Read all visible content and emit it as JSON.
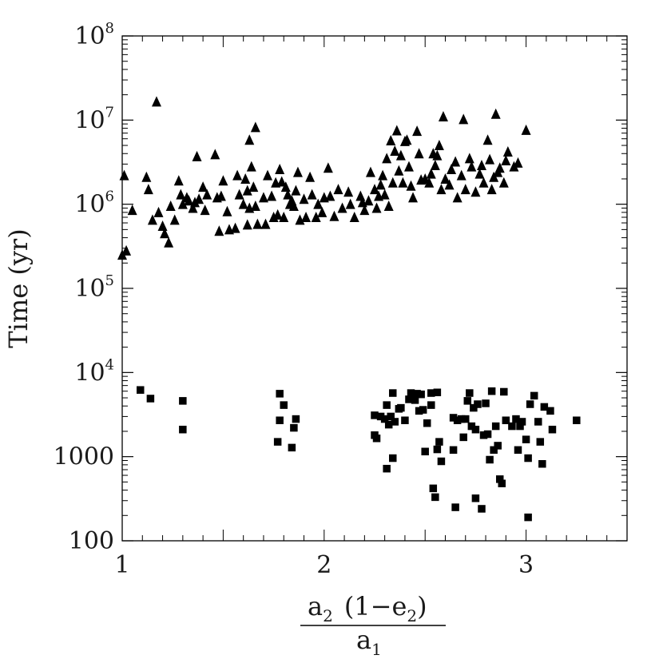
{
  "chart_data": {
    "type": "scatter",
    "title": "",
    "ylabel": "Time (yr)",
    "xlabel": {
      "numerator": {
        "a": "a",
        "a_sub": "2",
        "paren_open": "(1−e",
        "e_sub": "2",
        "paren_close": ")"
      },
      "denominator": {
        "a": "a",
        "a_sub": "1"
      }
    },
    "xlim": [
      1.0,
      3.5
    ],
    "ylim": [
      100,
      100000000
    ],
    "yscale": "log",
    "grid": false,
    "legend": "none",
    "x_ticks": [
      {
        "value": 1,
        "label": "1"
      },
      {
        "value": 2,
        "label": "2"
      },
      {
        "value": 3,
        "label": "3"
      }
    ],
    "y_ticks": [
      {
        "value": 100,
        "label": "100",
        "base": "",
        "exp": ""
      },
      {
        "value": 1000,
        "label": "1000",
        "base": "",
        "exp": ""
      },
      {
        "value": 10000,
        "label": "",
        "base": "10",
        "exp": "4"
      },
      {
        "value": 100000,
        "label": "",
        "base": "10",
        "exp": "5"
      },
      {
        "value": 1000000,
        "label": "",
        "base": "10",
        "exp": "6"
      },
      {
        "value": 10000000,
        "label": "",
        "base": "10",
        "exp": "7"
      },
      {
        "value": 100000000,
        "label": "",
        "base": "10",
        "exp": "8"
      }
    ],
    "series": [
      {
        "marker": "triangle",
        "color": "#000000",
        "points": [
          [
            1.0,
            250000
          ],
          [
            1.01,
            2200000
          ],
          [
            1.02,
            280000
          ],
          [
            1.05,
            850000
          ],
          [
            1.12,
            2100000
          ],
          [
            1.13,
            1500000
          ],
          [
            1.15,
            650000
          ],
          [
            1.17,
            16500000
          ],
          [
            1.18,
            800000
          ],
          [
            1.2,
            550000
          ],
          [
            1.21,
            450000
          ],
          [
            1.23,
            350000
          ],
          [
            1.24,
            950000
          ],
          [
            1.26,
            650000
          ],
          [
            1.28,
            1900000
          ],
          [
            1.29,
            1300000
          ],
          [
            1.3,
            1000000
          ],
          [
            1.32,
            1200000
          ],
          [
            1.33,
            1100000
          ],
          [
            1.35,
            900000
          ],
          [
            1.36,
            1050000
          ],
          [
            1.37,
            3700000
          ],
          [
            1.38,
            1150000
          ],
          [
            1.4,
            1600000
          ],
          [
            1.41,
            850000
          ],
          [
            1.42,
            1300000
          ],
          [
            1.46,
            3900000
          ],
          [
            1.47,
            1200000
          ],
          [
            1.48,
            480000
          ],
          [
            1.49,
            1250000
          ],
          [
            1.5,
            1900000
          ],
          [
            1.52,
            820000
          ],
          [
            1.53,
            500000
          ],
          [
            1.56,
            520000
          ],
          [
            1.57,
            2200000
          ],
          [
            1.58,
            1300000
          ],
          [
            1.6,
            1000000
          ],
          [
            1.61,
            2000000
          ],
          [
            1.62,
            570000
          ],
          [
            1.62,
            1450000
          ],
          [
            1.63,
            900000
          ],
          [
            1.63,
            5800000
          ],
          [
            1.64,
            2800000
          ],
          [
            1.65,
            1600000
          ],
          [
            1.66,
            8200000
          ],
          [
            1.66,
            950000
          ],
          [
            1.67,
            580000
          ],
          [
            1.7,
            1200000
          ],
          [
            1.71,
            580000
          ],
          [
            1.72,
            2200000
          ],
          [
            1.74,
            1250000
          ],
          [
            1.75,
            700000
          ],
          [
            1.76,
            1800000
          ],
          [
            1.77,
            750000
          ],
          [
            1.78,
            2600000
          ],
          [
            1.79,
            1850000
          ],
          [
            1.8,
            700000
          ],
          [
            1.81,
            1600000
          ],
          [
            1.82,
            1300000
          ],
          [
            1.83,
            1000000
          ],
          [
            1.84,
            1100000
          ],
          [
            1.85,
            950000
          ],
          [
            1.86,
            1450000
          ],
          [
            1.87,
            2400000
          ],
          [
            1.88,
            650000
          ],
          [
            1.9,
            1150000
          ],
          [
            1.91,
            700000
          ],
          [
            1.93,
            2100000
          ],
          [
            1.94,
            1300000
          ],
          [
            1.96,
            700000
          ],
          [
            1.97,
            1000000
          ],
          [
            1.99,
            800000
          ],
          [
            2.0,
            1200000
          ],
          [
            2.02,
            2700000
          ],
          [
            2.03,
            1250000
          ],
          [
            2.05,
            720000
          ],
          [
            2.07,
            1500000
          ],
          [
            2.09,
            900000
          ],
          [
            2.12,
            1400000
          ],
          [
            2.13,
            1000000
          ],
          [
            2.15,
            700000
          ],
          [
            2.18,
            1250000
          ],
          [
            2.19,
            1050000
          ],
          [
            2.2,
            850000
          ],
          [
            2.22,
            1100000
          ],
          [
            2.23,
            2400000
          ],
          [
            2.25,
            1500000
          ],
          [
            2.26,
            900000
          ],
          [
            2.27,
            1250000
          ],
          [
            2.28,
            1700000
          ],
          [
            2.29,
            2200000
          ],
          [
            2.3,
            1300000
          ],
          [
            2.31,
            3500000
          ],
          [
            2.32,
            950000
          ],
          [
            2.33,
            5700000
          ],
          [
            2.34,
            1800000
          ],
          [
            2.35,
            4300000
          ],
          [
            2.36,
            7500000
          ],
          [
            2.37,
            2500000
          ],
          [
            2.38,
            3800000
          ],
          [
            2.39,
            1800000
          ],
          [
            2.4,
            5600000
          ],
          [
            2.41,
            5800000
          ],
          [
            2.42,
            2800000
          ],
          [
            2.43,
            1650000
          ],
          [
            2.44,
            1200000
          ],
          [
            2.46,
            7400000
          ],
          [
            2.47,
            4000000
          ],
          [
            2.48,
            1950000
          ],
          [
            2.5,
            2000000
          ],
          [
            2.52,
            1800000
          ],
          [
            2.53,
            2300000
          ],
          [
            2.54,
            4000000
          ],
          [
            2.55,
            2900000
          ],
          [
            2.56,
            3800000
          ],
          [
            2.57,
            5000000
          ],
          [
            2.58,
            1500000
          ],
          [
            2.59,
            11000000
          ],
          [
            2.6,
            2000000
          ],
          [
            2.62,
            1700000
          ],
          [
            2.63,
            2600000
          ],
          [
            2.65,
            3200000
          ],
          [
            2.66,
            1200000
          ],
          [
            2.68,
            2200000
          ],
          [
            2.69,
            10200000
          ],
          [
            2.7,
            1500000
          ],
          [
            2.72,
            3500000
          ],
          [
            2.73,
            2800000
          ],
          [
            2.75,
            1400000
          ],
          [
            2.77,
            2300000
          ],
          [
            2.78,
            2900000
          ],
          [
            2.79,
            1800000
          ],
          [
            2.81,
            5800000
          ],
          [
            2.82,
            3400000
          ],
          [
            2.83,
            1500000
          ],
          [
            2.84,
            2100000
          ],
          [
            2.85,
            11800000
          ],
          [
            2.86,
            2400000
          ],
          [
            2.87,
            2700000
          ],
          [
            2.89,
            1800000
          ],
          [
            2.9,
            3300000
          ],
          [
            2.91,
            4200000
          ],
          [
            2.94,
            2800000
          ],
          [
            2.96,
            3100000
          ],
          [
            3.0,
            7600000
          ]
        ]
      },
      {
        "marker": "square",
        "color": "#000000",
        "points": [
          [
            1.09,
            6200
          ],
          [
            1.14,
            4900
          ],
          [
            1.3,
            4600
          ],
          [
            1.3,
            2100
          ],
          [
            1.77,
            1500
          ],
          [
            1.78,
            5600
          ],
          [
            1.78,
            2700
          ],
          [
            1.8,
            4100
          ],
          [
            1.84,
            1280
          ],
          [
            1.85,
            2200
          ],
          [
            1.86,
            2800
          ],
          [
            2.25,
            3100
          ],
          [
            2.25,
            1800
          ],
          [
            2.26,
            1650
          ],
          [
            2.28,
            3000
          ],
          [
            2.3,
            2800
          ],
          [
            2.31,
            4100
          ],
          [
            2.31,
            720
          ],
          [
            2.32,
            2400
          ],
          [
            2.33,
            3000
          ],
          [
            2.34,
            5700
          ],
          [
            2.34,
            960
          ],
          [
            2.35,
            2600
          ],
          [
            2.37,
            3700
          ],
          [
            2.38,
            3800
          ],
          [
            2.4,
            2700
          ],
          [
            2.42,
            4800
          ],
          [
            2.43,
            5700
          ],
          [
            2.44,
            5000
          ],
          [
            2.45,
            4700
          ],
          [
            2.46,
            5600
          ],
          [
            2.47,
            3500
          ],
          [
            2.48,
            5500
          ],
          [
            2.49,
            3600
          ],
          [
            2.5,
            1150
          ],
          [
            2.51,
            2500
          ],
          [
            2.53,
            4100
          ],
          [
            2.53,
            5700
          ],
          [
            2.54,
            420
          ],
          [
            2.55,
            330
          ],
          [
            2.56,
            5800
          ],
          [
            2.56,
            1220
          ],
          [
            2.57,
            1500
          ],
          [
            2.58,
            880
          ],
          [
            2.64,
            2900
          ],
          [
            2.64,
            1200
          ],
          [
            2.65,
            250
          ],
          [
            2.66,
            2700
          ],
          [
            2.68,
            2800
          ],
          [
            2.69,
            1700
          ],
          [
            2.7,
            2800
          ],
          [
            2.71,
            4600
          ],
          [
            2.72,
            5700
          ],
          [
            2.73,
            2300
          ],
          [
            2.74,
            3800
          ],
          [
            2.75,
            2100
          ],
          [
            2.75,
            320
          ],
          [
            2.76,
            4200
          ],
          [
            2.78,
            240
          ],
          [
            2.79,
            1800
          ],
          [
            2.8,
            4300
          ],
          [
            2.81,
            1850
          ],
          [
            2.82,
            920
          ],
          [
            2.83,
            6000
          ],
          [
            2.84,
            1200
          ],
          [
            2.85,
            2300
          ],
          [
            2.86,
            1350
          ],
          [
            2.87,
            540
          ],
          [
            2.88,
            480
          ],
          [
            2.89,
            5900
          ],
          [
            2.9,
            2700
          ],
          [
            2.93,
            2300
          ],
          [
            2.95,
            2800
          ],
          [
            2.96,
            1200
          ],
          [
            2.97,
            2300
          ],
          [
            2.98,
            2600
          ],
          [
            3.0,
            1600
          ],
          [
            3.01,
            190
          ],
          [
            3.01,
            960
          ],
          [
            3.02,
            4200
          ],
          [
            3.04,
            5300
          ],
          [
            3.06,
            2600
          ],
          [
            3.07,
            1500
          ],
          [
            3.08,
            820
          ],
          [
            3.09,
            3900
          ],
          [
            3.12,
            3500
          ],
          [
            3.13,
            2100
          ],
          [
            3.25,
            2700
          ]
        ]
      }
    ]
  }
}
